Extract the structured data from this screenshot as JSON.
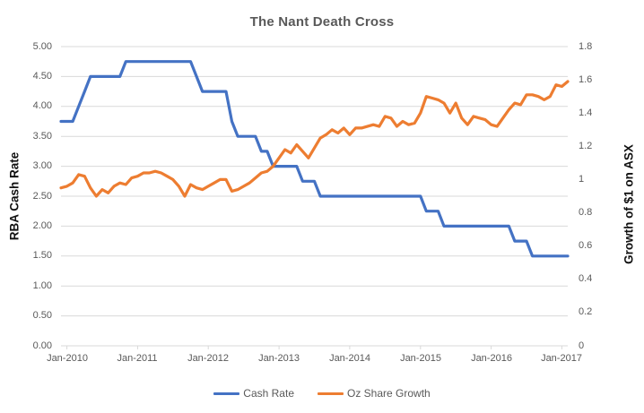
{
  "chart_data": {
    "type": "line",
    "title": "The Nant Death Cross",
    "y_left": {
      "title": "RBA Cash Rate",
      "min": 0,
      "max": 5,
      "ticks": [
        "5.00",
        "4.50",
        "4.00",
        "3.50",
        "3.00",
        "2.50",
        "2.00",
        "1.50",
        "1.00",
        "0.50",
        "0.00"
      ]
    },
    "y_right": {
      "title": "Growth of $1 on ASX",
      "min": 0,
      "max": 1.8,
      "ticks": [
        "1.8",
        "1.6",
        "1.4",
        "1.2",
        "1",
        "0.8",
        "0.6",
        "0.4",
        "0.2",
        "0"
      ]
    },
    "x_axis": {
      "tick_labels": [
        "Jan-2010",
        "Jan-2011",
        "Jan-2012",
        "Jan-2013",
        "Jan-2014",
        "Jan-2015",
        "Jan-2016",
        "Jan-2017"
      ]
    },
    "months": [
      "Dec-2009",
      "Jan-2010",
      "Feb-2010",
      "Mar-2010",
      "Apr-2010",
      "May-2010",
      "Jun-2010",
      "Jul-2010",
      "Aug-2010",
      "Sep-2010",
      "Oct-2010",
      "Nov-2010",
      "Dec-2010",
      "Jan-2011",
      "Feb-2011",
      "Mar-2011",
      "Apr-2011",
      "May-2011",
      "Jun-2011",
      "Jul-2011",
      "Aug-2011",
      "Sep-2011",
      "Oct-2011",
      "Nov-2011",
      "Dec-2011",
      "Jan-2012",
      "Feb-2012",
      "Mar-2012",
      "Apr-2012",
      "May-2012",
      "Jun-2012",
      "Jul-2012",
      "Aug-2012",
      "Sep-2012",
      "Oct-2012",
      "Nov-2012",
      "Dec-2012",
      "Jan-2013",
      "Feb-2013",
      "Mar-2013",
      "Apr-2013",
      "May-2013",
      "Jun-2013",
      "Jul-2013",
      "Aug-2013",
      "Sep-2013",
      "Oct-2013",
      "Nov-2013",
      "Dec-2013",
      "Jan-2014",
      "Feb-2014",
      "Mar-2014",
      "Apr-2014",
      "May-2014",
      "Jun-2014",
      "Jul-2014",
      "Aug-2014",
      "Sep-2014",
      "Oct-2014",
      "Nov-2014",
      "Dec-2014",
      "Jan-2015",
      "Feb-2015",
      "Mar-2015",
      "Apr-2015",
      "May-2015",
      "Jun-2015",
      "Jul-2015",
      "Aug-2015",
      "Sep-2015",
      "Oct-2015",
      "Nov-2015",
      "Dec-2015",
      "Jan-2016",
      "Feb-2016",
      "Mar-2016",
      "Apr-2016",
      "May-2016",
      "Jun-2016",
      "Jul-2016",
      "Aug-2016",
      "Sep-2016",
      "Oct-2016",
      "Nov-2016",
      "Dec-2016",
      "Jan-2017",
      "Feb-2017"
    ],
    "series": [
      {
        "name": "Cash Rate",
        "axis": "left",
        "color": "#4472C4",
        "values": [
          3.75,
          3.75,
          3.75,
          4.0,
          4.25,
          4.5,
          4.5,
          4.5,
          4.5,
          4.5,
          4.5,
          4.75,
          4.75,
          4.75,
          4.75,
          4.75,
          4.75,
          4.75,
          4.75,
          4.75,
          4.75,
          4.75,
          4.75,
          4.5,
          4.25,
          4.25,
          4.25,
          4.25,
          4.25,
          3.75,
          3.5,
          3.5,
          3.5,
          3.5,
          3.25,
          3.25,
          3.0,
          3.0,
          3.0,
          3.0,
          3.0,
          2.75,
          2.75,
          2.75,
          2.5,
          2.5,
          2.5,
          2.5,
          2.5,
          2.5,
          2.5,
          2.5,
          2.5,
          2.5,
          2.5,
          2.5,
          2.5,
          2.5,
          2.5,
          2.5,
          2.5,
          2.5,
          2.25,
          2.25,
          2.25,
          2.0,
          2.0,
          2.0,
          2.0,
          2.0,
          2.0,
          2.0,
          2.0,
          2.0,
          2.0,
          2.0,
          2.0,
          1.75,
          1.75,
          1.75,
          1.5,
          1.5,
          1.5,
          1.5,
          1.5,
          1.5,
          1.5
        ]
      },
      {
        "name": "Oz Share Growth",
        "axis": "right",
        "color": "#ED7D31",
        "values": [
          0.95,
          0.96,
          0.98,
          1.03,
          1.02,
          0.95,
          0.9,
          0.94,
          0.92,
          0.96,
          0.98,
          0.97,
          1.01,
          1.02,
          1.04,
          1.04,
          1.05,
          1.04,
          1.02,
          1.0,
          0.96,
          0.9,
          0.97,
          0.95,
          0.94,
          0.96,
          0.98,
          1.0,
          1.0,
          0.93,
          0.94,
          0.96,
          0.98,
          1.01,
          1.04,
          1.05,
          1.08,
          1.13,
          1.18,
          1.16,
          1.21,
          1.17,
          1.13,
          1.19,
          1.25,
          1.27,
          1.3,
          1.28,
          1.31,
          1.27,
          1.31,
          1.31,
          1.32,
          1.33,
          1.32,
          1.38,
          1.37,
          1.32,
          1.35,
          1.33,
          1.34,
          1.4,
          1.5,
          1.49,
          1.48,
          1.46,
          1.4,
          1.46,
          1.37,
          1.33,
          1.38,
          1.37,
          1.36,
          1.33,
          1.32,
          1.37,
          1.42,
          1.46,
          1.45,
          1.51,
          1.51,
          1.5,
          1.48,
          1.5,
          1.57,
          1.56,
          1.59
        ]
      }
    ],
    "colors": {
      "grid": "#D9D9D9",
      "axis_line": "#D9D9D9",
      "tick_text": "#595959",
      "title_text": "#595959",
      "background": "#FFFFFF"
    },
    "legend": {
      "position": "bottom"
    },
    "grid": "horizontal-only"
  }
}
